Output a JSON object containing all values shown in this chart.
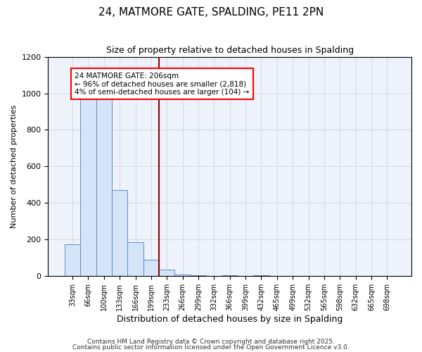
{
  "title": "24, MATMORE GATE, SPALDING, PE11 2PN",
  "subtitle": "Size of property relative to detached houses in Spalding",
  "xlabel": "Distribution of detached houses by size in Spalding",
  "ylabel": "Number of detached properties",
  "bar_color": "#d6e4f7",
  "bar_edge_color": "#5b8ec4",
  "annotation_line_color": "#8B0000",
  "categories": [
    "33sqm",
    "66sqm",
    "100sqm",
    "133sqm",
    "166sqm",
    "199sqm",
    "233sqm",
    "266sqm",
    "299sqm",
    "332sqm",
    "366sqm",
    "399sqm",
    "432sqm",
    "465sqm",
    "499sqm",
    "532sqm",
    "565sqm",
    "598sqm",
    "632sqm",
    "665sqm",
    "698sqm"
  ],
  "values": [
    174,
    966,
    984,
    471,
    186,
    90,
    35,
    8,
    4,
    0,
    4,
    0,
    4,
    0,
    0,
    0,
    0,
    0,
    0,
    0,
    0
  ],
  "ylim": [
    0,
    1200
  ],
  "yticks": [
    0,
    200,
    400,
    600,
    800,
    1000,
    1200
  ],
  "annotation_text": "24 MATMORE GATE: 206sqm\n← 96% of detached houses are smaller (2,818)\n4% of semi-detached houses are larger (104) →",
  "vline_x": 5.5,
  "footer1": "Contains HM Land Registry data © Crown copyright and database right 2025.",
  "footer2": "Contains public sector information licensed under the Open Government Licence v3.0.",
  "background_color": "#eef2fb"
}
